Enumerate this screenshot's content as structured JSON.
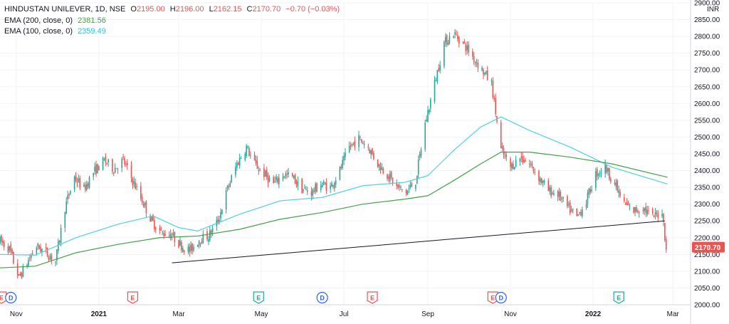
{
  "legend": {
    "symbol": "HINDUSTAN UNILEVER, 1D, NSE",
    "open_label": "O",
    "open": "2195.00",
    "high_label": "H",
    "high": "2196.00",
    "low_label": "L",
    "low": "2162.15",
    "close_label": "C",
    "close": "2170.70",
    "change": "−0.70 (−0.03%)",
    "ema200_label": "EMA (200, close, 0)",
    "ema200_value": "2381.56",
    "ema100_label": "EMA (100, close, 0)",
    "ema100_value": "2359.49"
  },
  "colors": {
    "up": "#26a69a",
    "down": "#ef5350",
    "ema200": "#43a047",
    "ema100": "#4dd0e1",
    "trendline": "#131722",
    "last_price_tag": "#ef5350",
    "earnings": "#ef5350",
    "earnings_positive": "#26a69a",
    "dividend": "#2962ff"
  },
  "chart_data": {
    "type": "candlestick",
    "currency": "INR",
    "last_price": "2170.70",
    "ylim": [
      2000,
      2900
    ],
    "y_ticks": [
      2000,
      2050,
      2100,
      2150,
      2200,
      2250,
      2300,
      2350,
      2400,
      2450,
      2500,
      2550,
      2600,
      2650,
      2700,
      2750,
      2800,
      2850,
      2900
    ],
    "y_tick_labels": [
      "2000.00",
      "2050.00",
      "2100.00",
      "2150.00",
      "2200.00",
      "2250.00",
      "2300.00",
      "2350.00",
      "2400.00",
      "2450.00",
      "2500.00",
      "2550.00",
      "2600.00",
      "2650.00",
      "2700.00",
      "2750.00",
      "2800.00",
      "2850.00",
      "2900.00"
    ],
    "x_range": [
      "2020-10-20",
      "2022-03-14"
    ],
    "x_ticks": [
      {
        "date": "2020-11-01",
        "label": "Nov"
      },
      {
        "date": "2021-01-01",
        "label": "2021"
      },
      {
        "date": "2021-03-01",
        "label": "Mar"
      },
      {
        "date": "2021-05-01",
        "label": "May"
      },
      {
        "date": "2021-07-01",
        "label": "Jul"
      },
      {
        "date": "2021-09-01",
        "label": "Sep"
      },
      {
        "date": "2021-11-01",
        "label": "Nov"
      },
      {
        "date": "2022-01-01",
        "label": "2022"
      },
      {
        "date": "2022-03-01",
        "label": "Mar"
      }
    ],
    "price_path": [
      [
        "2020-10-20",
        2190
      ],
      [
        "2020-10-27",
        2165
      ],
      [
        "2020-11-03",
        2080
      ],
      [
        "2020-11-09",
        2125
      ],
      [
        "2020-11-16",
        2175
      ],
      [
        "2020-11-23",
        2155
      ],
      [
        "2020-11-30",
        2130
      ],
      [
        "2020-12-07",
        2290
      ],
      [
        "2020-12-14",
        2380
      ],
      [
        "2020-12-21",
        2345
      ],
      [
        "2020-12-28",
        2395
      ],
      [
        "2021-01-05",
        2430
      ],
      [
        "2021-01-12",
        2405
      ],
      [
        "2021-01-19",
        2430
      ],
      [
        "2021-01-26",
        2370
      ],
      [
        "2021-02-02",
        2310
      ],
      [
        "2021-02-09",
        2250
      ],
      [
        "2021-02-16",
        2215
      ],
      [
        "2021-02-23",
        2210
      ],
      [
        "2021-03-02",
        2180
      ],
      [
        "2021-03-09",
        2160
      ],
      [
        "2021-03-16",
        2195
      ],
      [
        "2021-03-23",
        2205
      ],
      [
        "2021-03-30",
        2250
      ],
      [
        "2021-04-06",
        2345
      ],
      [
        "2021-04-13",
        2420
      ],
      [
        "2021-04-20",
        2470
      ],
      [
        "2021-04-26",
        2420
      ],
      [
        "2021-05-03",
        2390
      ],
      [
        "2021-05-10",
        2360
      ],
      [
        "2021-05-17",
        2390
      ],
      [
        "2021-05-24",
        2380
      ],
      [
        "2021-05-31",
        2345
      ],
      [
        "2021-06-07",
        2335
      ],
      [
        "2021-06-14",
        2360
      ],
      [
        "2021-06-21",
        2350
      ],
      [
        "2021-06-28",
        2400
      ],
      [
        "2021-07-05",
        2470
      ],
      [
        "2021-07-12",
        2495
      ],
      [
        "2021-07-19",
        2470
      ],
      [
        "2021-07-26",
        2420
      ],
      [
        "2021-08-02",
        2390
      ],
      [
        "2021-08-09",
        2350
      ],
      [
        "2021-08-16",
        2335
      ],
      [
        "2021-08-23",
        2370
      ],
      [
        "2021-08-30",
        2540
      ],
      [
        "2021-09-06",
        2660
      ],
      [
        "2021-09-13",
        2780
      ],
      [
        "2021-09-20",
        2810
      ],
      [
        "2021-09-27",
        2780
      ],
      [
        "2021-10-04",
        2740
      ],
      [
        "2021-10-11",
        2700
      ],
      [
        "2021-10-18",
        2660
      ],
      [
        "2021-10-25",
        2460
      ],
      [
        "2021-11-01",
        2410
      ],
      [
        "2021-11-08",
        2440
      ],
      [
        "2021-11-15",
        2420
      ],
      [
        "2021-11-22",
        2380
      ],
      [
        "2021-11-29",
        2340
      ],
      [
        "2021-12-06",
        2330
      ],
      [
        "2021-12-13",
        2290
      ],
      [
        "2021-12-20",
        2260
      ],
      [
        "2021-12-27",
        2310
      ],
      [
        "2022-01-03",
        2390
      ],
      [
        "2022-01-10",
        2410
      ],
      [
        "2022-01-17",
        2360
      ],
      [
        "2022-01-24",
        2300
      ],
      [
        "2022-01-31",
        2280
      ],
      [
        "2022-02-07",
        2290
      ],
      [
        "2022-02-14",
        2260
      ],
      [
        "2022-02-21",
        2280
      ],
      [
        "2022-02-24",
        2170
      ]
    ],
    "ema200": [
      [
        "2020-10-20",
        2110
      ],
      [
        "2020-11-15",
        2115
      ],
      [
        "2020-12-15",
        2155
      ],
      [
        "2021-01-15",
        2180
      ],
      [
        "2021-02-15",
        2200
      ],
      [
        "2021-03-15",
        2205
      ],
      [
        "2021-04-15",
        2225
      ],
      [
        "2021-05-15",
        2255
      ],
      [
        "2021-06-15",
        2275
      ],
      [
        "2021-07-15",
        2300
      ],
      [
        "2021-08-15",
        2315
      ],
      [
        "2021-09-01",
        2325
      ],
      [
        "2021-09-20",
        2370
      ],
      [
        "2021-10-10",
        2420
      ],
      [
        "2021-10-25",
        2455
      ],
      [
        "2021-11-15",
        2455
      ],
      [
        "2021-12-15",
        2440
      ],
      [
        "2022-01-15",
        2420
      ],
      [
        "2022-02-25",
        2380
      ]
    ],
    "ema100": [
      [
        "2020-10-20",
        2150
      ],
      [
        "2020-11-15",
        2148
      ],
      [
        "2020-12-15",
        2200
      ],
      [
        "2021-01-15",
        2240
      ],
      [
        "2021-02-10",
        2265
      ],
      [
        "2021-03-01",
        2230
      ],
      [
        "2021-03-15",
        2220
      ],
      [
        "2021-04-15",
        2270
      ],
      [
        "2021-05-15",
        2310
      ],
      [
        "2021-06-15",
        2320
      ],
      [
        "2021-07-15",
        2355
      ],
      [
        "2021-08-15",
        2365
      ],
      [
        "2021-09-01",
        2385
      ],
      [
        "2021-09-20",
        2460
      ],
      [
        "2021-10-10",
        2530
      ],
      [
        "2021-10-25",
        2560
      ],
      [
        "2021-11-15",
        2520
      ],
      [
        "2021-12-15",
        2470
      ],
      [
        "2022-01-15",
        2410
      ],
      [
        "2022-02-25",
        2360
      ]
    ],
    "trendline": [
      [
        "2021-02-24",
        2125
      ],
      [
        "2022-02-23",
        2250
      ]
    ],
    "event_markers": [
      {
        "date": "2020-10-21",
        "kind": "earnings",
        "letter": "E"
      },
      {
        "date": "2020-10-28",
        "kind": "dividend",
        "letter": "D"
      },
      {
        "date": "2021-01-26",
        "kind": "earnings",
        "letter": "E"
      },
      {
        "date": "2021-04-29",
        "kind": "earnings_positive",
        "letter": "E"
      },
      {
        "date": "2021-06-15",
        "kind": "dividend",
        "letter": "D"
      },
      {
        "date": "2021-07-22",
        "kind": "earnings",
        "letter": "E"
      },
      {
        "date": "2021-10-19",
        "kind": "earnings",
        "letter": "E"
      },
      {
        "date": "2021-10-25",
        "kind": "dividend",
        "letter": "D"
      },
      {
        "date": "2022-01-20",
        "kind": "earnings_positive",
        "letter": "E"
      }
    ]
  }
}
